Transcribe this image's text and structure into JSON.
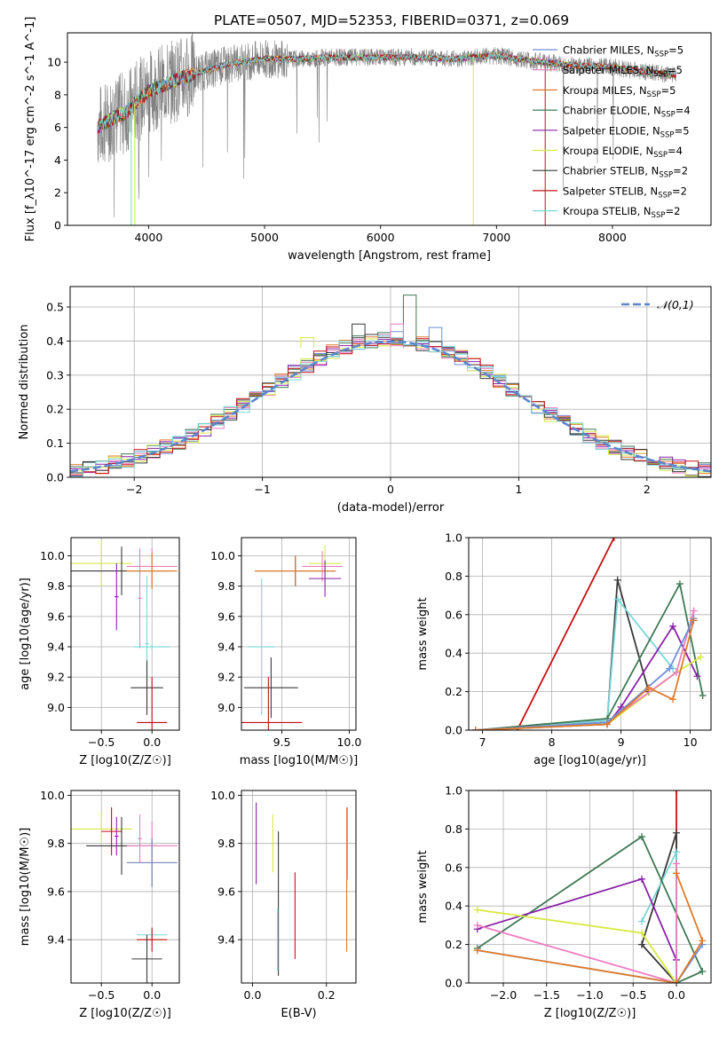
{
  "figure": {
    "title": "PLATE=0507, MJD=52353, FIBERID=0371, z=0.069",
    "colors": {
      "chab_miles": "#6f8fd8",
      "salp_miles": "#f07cc0",
      "krou_miles": "#e07a2a",
      "chab_elodie": "#3f7a55",
      "salp_elodie": "#8a22a8",
      "krou_elodie": "#d6ea40",
      "chab_stelib": "#3a3a3a",
      "salp_stelib": "#c80f14",
      "krou_stelib": "#79d6d8",
      "data": "#808080",
      "grid": "#b0b0b0"
    }
  },
  "chart_data": [
    {
      "id": "spectrum",
      "type": "line",
      "xlabel": "wavelength [Angstrom, rest frame]",
      "ylabel": "Flux [f_λ10^-17 erg cm^-2 s^-1 A^-1]",
      "xlim": [
        3300,
        8850
      ],
      "ylim": [
        0,
        11.8
      ],
      "xticks": [
        4000,
        5000,
        6000,
        7000,
        8000
      ],
      "yticks": [
        0,
        2,
        4,
        6,
        8,
        10
      ],
      "grid": false,
      "legend_position": "right",
      "continuum": {
        "x": [
          3560,
          3700,
          3800,
          3900,
          4000,
          4100,
          4300,
          4500,
          4700,
          5000,
          5300,
          5600,
          6000,
          6300,
          6600,
          7000,
          7400,
          7700,
          8000,
          8300,
          8550
        ],
        "y": [
          6.0,
          6.6,
          6.9,
          7.6,
          8.2,
          8.5,
          9.1,
          9.5,
          9.9,
          10.2,
          10.2,
          10.3,
          10.3,
          10.3,
          10.2,
          10.4,
          10.0,
          9.8,
          9.7,
          9.4,
          9.2
        ]
      },
      "legend": [
        {
          "label": "Chabrier MILES, N",
          "sub": "SSP",
          "suffix": "=5",
          "color_key": "chab_miles"
        },
        {
          "label": "Salpeter MILES, N",
          "sub": "SSP",
          "suffix": "=5",
          "color_key": "salp_miles"
        },
        {
          "label": "Kroupa MILES, N",
          "sub": "SSP",
          "suffix": "=5",
          "color_key": "krou_miles"
        },
        {
          "label": "Chabrier ELODIE, N",
          "sub": "SSP",
          "suffix": "=4",
          "color_key": "chab_elodie"
        },
        {
          "label": "Salpeter ELODIE, N",
          "sub": "SSP",
          "suffix": "=5",
          "color_key": "salp_elodie"
        },
        {
          "label": "Kroupa ELODIE, N",
          "sub": "SSP",
          "suffix": "=4",
          "color_key": "krou_elodie"
        },
        {
          "label": "Chabrier STELIB, N",
          "sub": "SSP",
          "suffix": "=2",
          "color_key": "chab_stelib"
        },
        {
          "label": "Salpeter STELIB, N",
          "sub": "SSP",
          "suffix": "=2",
          "color_key": "salp_stelib"
        },
        {
          "label": "Kroupa STELIB, N",
          "sub": "SSP",
          "suffix": "=2",
          "color_key": "krou_stelib"
        }
      ]
    },
    {
      "id": "residuals",
      "type": "line",
      "xlabel": "(data-model)/error",
      "ylabel": "Normed distribution",
      "xlim": [
        -2.5,
        2.5
      ],
      "ylim": [
        0,
        0.56
      ],
      "xticks": [
        -2,
        -1,
        0,
        1,
        2
      ],
      "yticks": [
        0.0,
        0.1,
        0.2,
        0.3,
        0.4,
        0.5
      ],
      "grid": true,
      "legend_position": "top-right",
      "legend_label": "𝒩(0,1)",
      "bin_width": 0.1,
      "histogram_series": [
        "chab_miles",
        "salp_miles",
        "krou_miles",
        "chab_elodie",
        "salp_elodie",
        "krou_elodie",
        "chab_stelib",
        "salp_stelib",
        "krou_stelib"
      ],
      "spike_bins": [
        {
          "x": 0.15,
          "y": 0.535,
          "color_key": "chab_elodie"
        },
        {
          "x": 0.35,
          "y": 0.44,
          "color_key": "chab_miles"
        },
        {
          "x": 0.05,
          "y": 0.45,
          "color_key": "salp_miles"
        },
        {
          "x": -0.25,
          "y": 0.45,
          "color_key": "chab_stelib"
        },
        {
          "x": -0.65,
          "y": 0.41,
          "color_key": "krou_elodie"
        }
      ]
    },
    {
      "id": "age_vs_Z",
      "type": "scatter",
      "xlabel": "Z [log10(Z/Z☉)]",
      "ylabel": "age [log10(age/yr)]",
      "xlim": [
        -0.8,
        0.27
      ],
      "ylim": [
        8.85,
        10.12
      ],
      "xticks": [
        -0.5,
        0.0
      ],
      "yticks": [
        9.0,
        9.2,
        9.4,
        9.6,
        9.8,
        10.0
      ],
      "grid": true,
      "points": [
        {
          "x": -0.5,
          "y": 9.95,
          "xerr": 0.3,
          "yerr": 0.15,
          "color_key": "krou_elodie"
        },
        {
          "x": -0.3,
          "y": 9.9,
          "xerr": 0.5,
          "yerr": 0.16,
          "color_key": "chab_stelib"
        },
        {
          "x": -0.35,
          "y": 9.73,
          "xerr": 0.02,
          "yerr": 0.22,
          "color_key": "salp_elodie"
        },
        {
          "x": -0.12,
          "y": 9.72,
          "xerr": 0.02,
          "yerr": 0.33,
          "color_key": "salp_miles"
        },
        {
          "x": -0.05,
          "y": 9.42,
          "xerr": 0.02,
          "yerr": 0.45,
          "color_key": "krou_stelib"
        },
        {
          "x": 0.0,
          "y": 9.93,
          "xerr": 0.25,
          "yerr": 0.12,
          "color_key": "salp_miles"
        },
        {
          "x": 0.0,
          "y": 9.9,
          "xerr": 0.25,
          "yerr": 0.12,
          "color_key": "krou_miles"
        },
        {
          "x": 0.0,
          "y": 9.4,
          "xerr": 0.18,
          "yerr": 0.02,
          "color_key": "krou_stelib"
        },
        {
          "x": -0.05,
          "y": 9.13,
          "xerr": 0.16,
          "yerr": 0.18,
          "color_key": "chab_stelib"
        },
        {
          "x": 0.0,
          "y": 8.9,
          "xerr": 0.15,
          "yerr": 0.3,
          "color_key": "salp_stelib"
        }
      ]
    },
    {
      "id": "age_vs_mass",
      "type": "scatter",
      "xlabel": "mass [log10(M/M☉)]",
      "ylabel": "",
      "xlim": [
        9.2,
        10.05
      ],
      "ylim": [
        8.85,
        10.12
      ],
      "xticks": [
        9.5,
        10.0
      ],
      "yticks": [
        9.0,
        9.2,
        9.4,
        9.6,
        9.8,
        10.0
      ],
      "grid": true,
      "points": [
        {
          "x": 9.82,
          "y": 9.95,
          "xerr": 0.12,
          "yerr": 0.12,
          "color_key": "krou_elodie"
        },
        {
          "x": 9.8,
          "y": 9.93,
          "xerr": 0.15,
          "yerr": 0.1,
          "color_key": "salp_miles"
        },
        {
          "x": 9.6,
          "y": 9.9,
          "xerr": 0.3,
          "yerr": 0.1,
          "color_key": "chab_stelib"
        },
        {
          "x": 9.6,
          "y": 9.9,
          "xerr": 0.3,
          "yerr": 0.1,
          "color_key": "krou_miles"
        },
        {
          "x": 9.82,
          "y": 9.85,
          "xerr": 0.12,
          "yerr": 0.12,
          "color_key": "salp_elodie"
        },
        {
          "x": 9.35,
          "y": 9.4,
          "xerr": 0.1,
          "yerr": 0.45,
          "color_key": "krou_stelib"
        },
        {
          "x": 9.42,
          "y": 9.13,
          "xerr": 0.2,
          "yerr": 0.2,
          "color_key": "chab_stelib"
        },
        {
          "x": 9.4,
          "y": 8.9,
          "xerr": 0.25,
          "yerr": 0.3,
          "color_key": "salp_stelib"
        }
      ]
    },
    {
      "id": "weight_vs_age",
      "type": "line",
      "xlabel": "age [log10(age/yr)]",
      "ylabel": "mass weight",
      "xlim": [
        6.8,
        10.3
      ],
      "ylim": [
        0,
        1.0
      ],
      "xticks": [
        7,
        8,
        9,
        10
      ],
      "yticks": [
        0.0,
        0.2,
        0.4,
        0.6,
        0.8,
        1.0
      ],
      "grid": true,
      "series": [
        {
          "color_key": "salp_stelib",
          "x": [
            7.5,
            8.9
          ],
          "y": [
            0.0,
            1.0
          ]
        },
        {
          "color_key": "chab_stelib",
          "x": [
            6.9,
            8.8,
            8.95,
            9.4
          ],
          "y": [
            0.0,
            0.04,
            0.78,
            0.2
          ]
        },
        {
          "color_key": "krou_stelib",
          "x": [
            6.9,
            8.8,
            8.95,
            9.75
          ],
          "y": [
            0.0,
            0.05,
            0.68,
            0.32
          ]
        },
        {
          "color_key": "chab_elodie",
          "x": [
            6.9,
            8.8,
            9.85,
            10.18
          ],
          "y": [
            0.0,
            0.06,
            0.76,
            0.18
          ]
        },
        {
          "color_key": "salp_elodie",
          "x": [
            6.9,
            8.8,
            9.0,
            9.75,
            10.1
          ],
          "y": [
            0.0,
            0.03,
            0.12,
            0.54,
            0.28
          ]
        },
        {
          "color_key": "krou_elodie",
          "x": [
            6.9,
            8.8,
            9.8,
            10.15
          ],
          "y": [
            0.0,
            0.03,
            0.3,
            0.38
          ]
        },
        {
          "color_key": "salp_miles",
          "x": [
            6.9,
            8.8,
            9.8,
            10.05
          ],
          "y": [
            0.0,
            0.04,
            0.3,
            0.62
          ]
        },
        {
          "color_key": "chab_miles",
          "x": [
            6.9,
            8.8,
            9.7,
            10.05
          ],
          "y": [
            0.0,
            0.04,
            0.32,
            0.58
          ]
        },
        {
          "color_key": "krou_miles",
          "x": [
            6.9,
            8.8,
            9.4,
            9.75,
            10.05
          ],
          "y": [
            0.0,
            0.03,
            0.22,
            0.16,
            0.57
          ]
        }
      ]
    },
    {
      "id": "mass_vs_Z",
      "type": "scatter",
      "xlabel": "Z [log10(Z/Z☉)]",
      "ylabel": "mass [log10(M/M☉)]",
      "xlim": [
        -0.8,
        0.27
      ],
      "ylim": [
        9.22,
        10.02
      ],
      "xticks": [
        -0.5,
        0.0
      ],
      "yticks": [
        9.4,
        9.6,
        9.8,
        10.0
      ],
      "grid": true,
      "points": [
        {
          "x": -0.5,
          "y": 9.86,
          "xerr": 0.3,
          "yerr": 0.07,
          "color_key": "krou_elodie"
        },
        {
          "x": -0.4,
          "y": 9.85,
          "xerr": 0.1,
          "yerr": 0.1,
          "color_key": "salp_stelib"
        },
        {
          "x": -0.3,
          "y": 9.79,
          "xerr": 0.35,
          "yerr": 0.12,
          "color_key": "chab_stelib"
        },
        {
          "x": -0.35,
          "y": 9.83,
          "xerr": 0.02,
          "yerr": 0.08,
          "color_key": "salp_elodie"
        },
        {
          "x": -0.12,
          "y": 9.82,
          "xerr": 0.02,
          "yerr": 0.1,
          "color_key": "salp_miles"
        },
        {
          "x": 0.0,
          "y": 9.79,
          "xerr": 0.25,
          "yerr": 0.1,
          "color_key": "salp_miles"
        },
        {
          "x": 0.0,
          "y": 9.72,
          "xerr": 0.25,
          "yerr": 0.1,
          "color_key": "krou_miles"
        },
        {
          "x": 0.0,
          "y": 9.72,
          "xerr": 0.25,
          "yerr": 0.1,
          "color_key": "chab_miles"
        },
        {
          "x": 0.0,
          "y": 9.42,
          "xerr": 0.15,
          "yerr": 0.02,
          "color_key": "krou_stelib"
        },
        {
          "x": 0.0,
          "y": 9.4,
          "xerr": 0.15,
          "yerr": 0.05,
          "color_key": "salp_stelib"
        },
        {
          "x": -0.05,
          "y": 9.32,
          "xerr": 0.15,
          "yerr": 0.1,
          "color_key": "chab_stelib"
        }
      ]
    },
    {
      "id": "mass_vs_ebv",
      "type": "scatter",
      "xlabel": "E(B-V)",
      "ylabel": "",
      "xlim": [
        -0.03,
        0.28
      ],
      "ylim": [
        9.22,
        10.02
      ],
      "xticks": [
        0.0,
        0.2
      ],
      "yticks": [
        9.4,
        9.6,
        9.8,
        10.0
      ],
      "grid": true,
      "points": [
        {
          "x": 0.01,
          "y": 9.8,
          "yerr": 0.17,
          "color_key": "salp_elodie"
        },
        {
          "x": 0.055,
          "y": 9.8,
          "yerr": 0.12,
          "color_key": "krou_elodie"
        },
        {
          "x": 0.07,
          "y": 9.55,
          "yerr": 0.3,
          "color_key": "chab_stelib"
        },
        {
          "x": 0.068,
          "y": 9.4,
          "yerr": 0.13,
          "color_key": "krou_stelib"
        },
        {
          "x": 0.115,
          "y": 9.5,
          "yerr": 0.18,
          "color_key": "salp_stelib"
        },
        {
          "x": 0.255,
          "y": 9.65,
          "yerr": 0.3,
          "color_key": "krou_miles"
        },
        {
          "x": 0.257,
          "y": 9.8,
          "yerr": 0.15,
          "color_key": "salp_miles"
        }
      ]
    },
    {
      "id": "weight_vs_Z",
      "type": "line",
      "xlabel": "Z [log10(Z/Z☉)]",
      "ylabel": "mass weight",
      "xlim": [
        -2.4,
        0.4
      ],
      "ylim": [
        0,
        1.0
      ],
      "xticks": [
        -2.0,
        -1.5,
        -1.0,
        -0.5,
        0.0
      ],
      "yticks": [
        0.0,
        0.2,
        0.4,
        0.6,
        0.8,
        1.0
      ],
      "grid": true,
      "series": [
        {
          "color_key": "salp_stelib",
          "x": [
            0.0,
            0.0
          ],
          "y": [
            0.0,
            1.0
          ]
        },
        {
          "color_key": "chab_stelib",
          "x": [
            0.0,
            0.0,
            -0.4,
            0.0
          ],
          "y": [
            0.0,
            0.78,
            0.2,
            0.0
          ]
        },
        {
          "color_key": "krou_stelib",
          "x": [
            -0.4,
            0.0,
            0.0
          ],
          "y": [
            0.32,
            0.68,
            0.0
          ]
        },
        {
          "color_key": "chab_elodie",
          "x": [
            -2.3,
            -0.4,
            0.3,
            0.0
          ],
          "y": [
            0.18,
            0.76,
            0.06,
            0.0
          ]
        },
        {
          "color_key": "salp_elodie",
          "x": [
            -2.3,
            -0.4,
            0.0,
            0.0
          ],
          "y": [
            0.28,
            0.54,
            0.12,
            0.0
          ]
        },
        {
          "color_key": "krou_elodie",
          "x": [
            -2.3,
            -0.4,
            0.0
          ],
          "y": [
            0.38,
            0.26,
            0.0
          ]
        },
        {
          "color_key": "salp_miles",
          "x": [
            -2.3,
            0.0,
            0.0
          ],
          "y": [
            0.3,
            0.0,
            0.62
          ]
        },
        {
          "color_key": "chab_miles",
          "x": [
            -2.3,
            0.0,
            0.3
          ],
          "y": [
            0.17,
            0.0,
            0.2
          ]
        },
        {
          "color_key": "krou_miles",
          "x": [
            -2.3,
            0.0,
            0.3,
            0.0
          ],
          "y": [
            0.17,
            0.0,
            0.22,
            0.57
          ]
        }
      ]
    }
  ]
}
